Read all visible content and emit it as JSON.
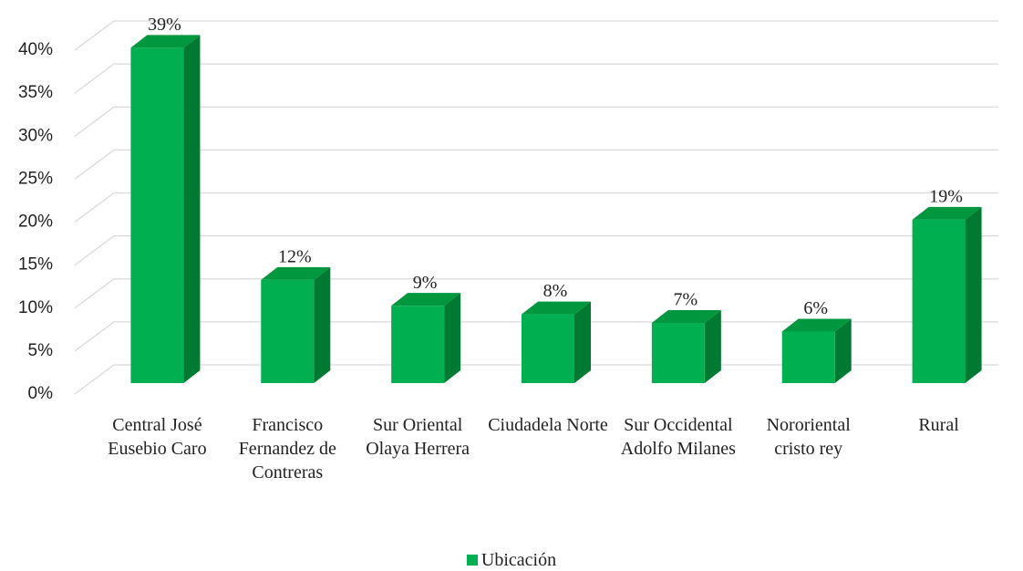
{
  "chart_data": {
    "type": "bar3d",
    "categories": [
      "Central José Eusebio Caro",
      "Francisco Fernandez de Contreras",
      "Sur Oriental Olaya Herrera",
      "Ciudadela Norte",
      "Sur Occidental Adolfo Milanes",
      "Nororiental cristo rey",
      "Rural"
    ],
    "series": [
      {
        "name": "Ubicación",
        "color": "#00b050",
        "values": [
          39,
          12,
          9,
          8,
          7,
          6,
          19
        ],
        "value_labels": [
          "39%",
          "12%",
          "9%",
          "8%",
          "7%",
          "6%",
          "19%"
        ]
      }
    ],
    "ylim": [
      0,
      40
    ],
    "yticks": [
      {
        "value": 0,
        "label": "0%"
      },
      {
        "value": 5,
        "label": "5%"
      },
      {
        "value": 10,
        "label": "10%"
      },
      {
        "value": 15,
        "label": "15%"
      },
      {
        "value": 20,
        "label": "20%"
      },
      {
        "value": 25,
        "label": "25%"
      },
      {
        "value": 30,
        "label": "30%"
      },
      {
        "value": 35,
        "label": "35%"
      },
      {
        "value": 40,
        "label": "40%"
      }
    ],
    "grid": true,
    "legend": "bottom"
  }
}
